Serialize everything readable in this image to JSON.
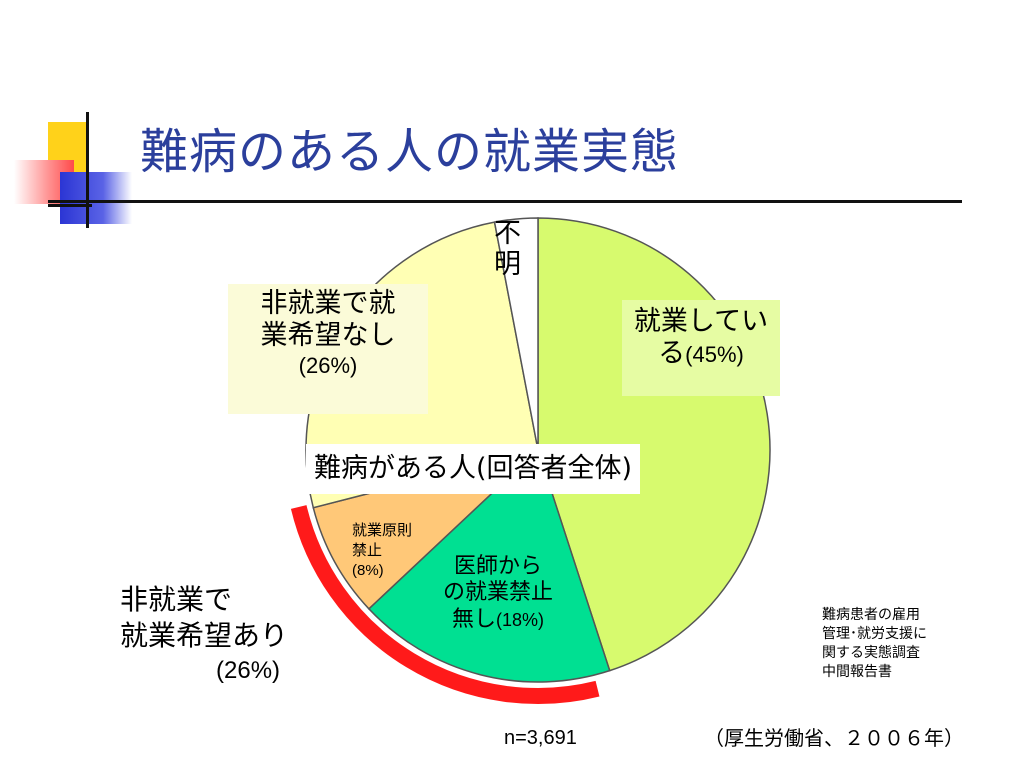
{
  "title": "難病のある人の就業実態",
  "chart_data": {
    "type": "pie",
    "title": "難病がある人(回答者全体)",
    "slices": [
      {
        "label": "就業している",
        "value": 45,
        "color": "#d7fa6e"
      },
      {
        "label": "医師からの就業禁止無し",
        "value": 18,
        "color": "#00e092"
      },
      {
        "label": "就業原則禁止",
        "value": 8,
        "color": "#ffc878"
      },
      {
        "label": "非就業で就業希望なし",
        "value": 26,
        "color": "#ffffb4"
      },
      {
        "label": "不明",
        "value": 3,
        "color": "#ffffff"
      }
    ],
    "group_annotation": {
      "label": "非就業で就業希望あり",
      "value": 26,
      "color": "#ff1a1a"
    },
    "n": "n=3,691"
  },
  "labels": {
    "working_line1": "就業してい",
    "working_line2": "る",
    "working_pct": "(45%)",
    "no_ban_line1": "医師から",
    "no_ban_line2": "の就業禁止",
    "no_ban_line3": "無し",
    "no_ban_pct": "(18%)",
    "ban_line1": "就業原則",
    "ban_line2": "禁止",
    "ban_pct": "(8%)",
    "no_wish_line1": "非就業で就",
    "no_wish_line2": "業希望なし",
    "no_wish_pct": "(26%)",
    "unknown_line1": "不",
    "unknown_line2": "明",
    "wish_line1": "非就業で",
    "wish_line2": "就業希望あり",
    "wish_pct": "(26%)",
    "center_label": "難病がある人(回答者全体)"
  },
  "footnote": [
    "難病患者の雇用",
    "管理･就労支援に",
    "関する実態調査",
    "中間報告書"
  ],
  "source": "（厚生労働省、２００６年）",
  "n_label": "n=3,691"
}
